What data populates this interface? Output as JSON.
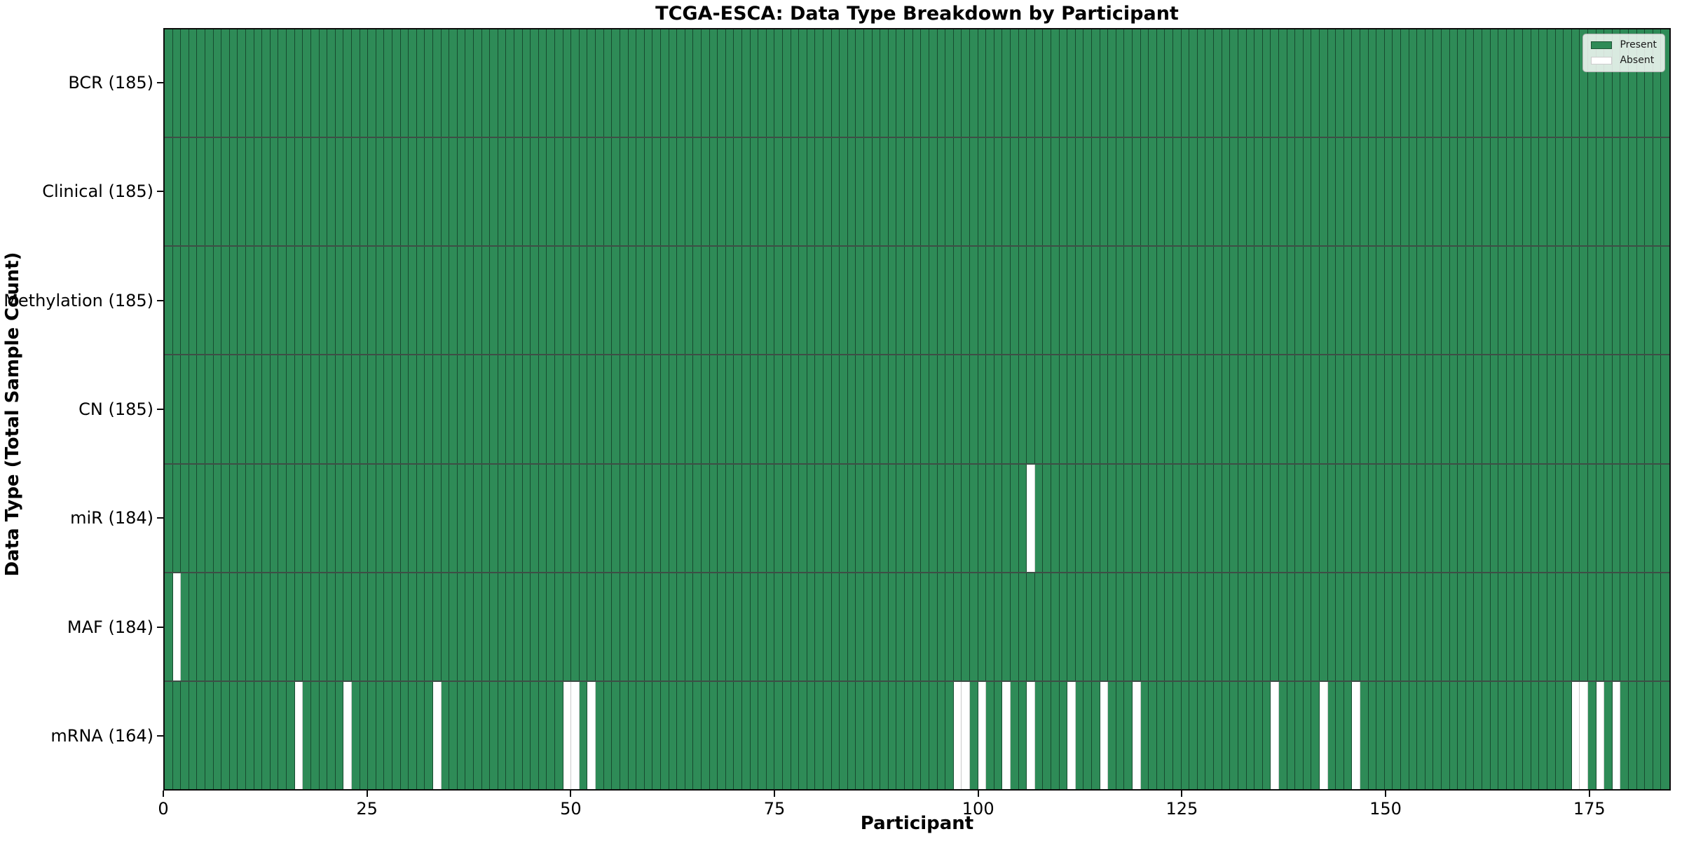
{
  "chart_data": {
    "type": "heatmap",
    "title": "TCGA-ESCA: Data Type Breakdown by Participant",
    "xlabel": "Participant",
    "ylabel": "Data Type (Total Sample Count)",
    "x_axis": {
      "min": 0,
      "max": 185,
      "tick_labels": [
        "0",
        "25",
        "50",
        "75",
        "100",
        "125",
        "150",
        "175"
      ],
      "tick_values": [
        0,
        25,
        50,
        75,
        100,
        125,
        150,
        175
      ]
    },
    "n_participants": 185,
    "grid": "off",
    "categories": [
      "BCR (185)",
      "Clinical (185)",
      "Methylation (185)",
      "CN (185)",
      "miR (184)",
      "MAF (184)",
      "mRNA (164)"
    ],
    "rows": [
      {
        "data_type": "BCR",
        "label": "BCR (185)",
        "present_count": 185,
        "absent_participants": []
      },
      {
        "data_type": "Clinical",
        "label": "Clinical (185)",
        "present_count": 185,
        "absent_participants": []
      },
      {
        "data_type": "Methylation",
        "label": "Methylation (185)",
        "present_count": 185,
        "absent_participants": []
      },
      {
        "data_type": "CN",
        "label": "CN (185)",
        "present_count": 185,
        "absent_participants": []
      },
      {
        "data_type": "miR",
        "label": "miR (184)",
        "present_count": 184,
        "absent_participants": [
          106
        ]
      },
      {
        "data_type": "MAF",
        "label": "MAF (184)",
        "present_count": 184,
        "absent_participants": [
          1
        ]
      },
      {
        "data_type": "mRNA",
        "label": "mRNA (164)",
        "present_count": 164,
        "absent_participants": [
          16,
          22,
          33,
          49,
          50,
          52,
          97,
          98,
          100,
          103,
          106,
          111,
          115,
          119,
          136,
          142,
          146,
          173,
          174,
          176,
          178
        ]
      }
    ],
    "legend": {
      "position": "upper right",
      "entries": [
        {
          "label": "Present",
          "color": "#2e8b57"
        },
        {
          "label": "Absent",
          "color": "#ffffff"
        }
      ]
    },
    "colors": {
      "present": "#2e8b57",
      "absent": "#ffffff",
      "cell_border": "#14301f",
      "frame": "#0c0c0c",
      "text": "#000000"
    }
  }
}
